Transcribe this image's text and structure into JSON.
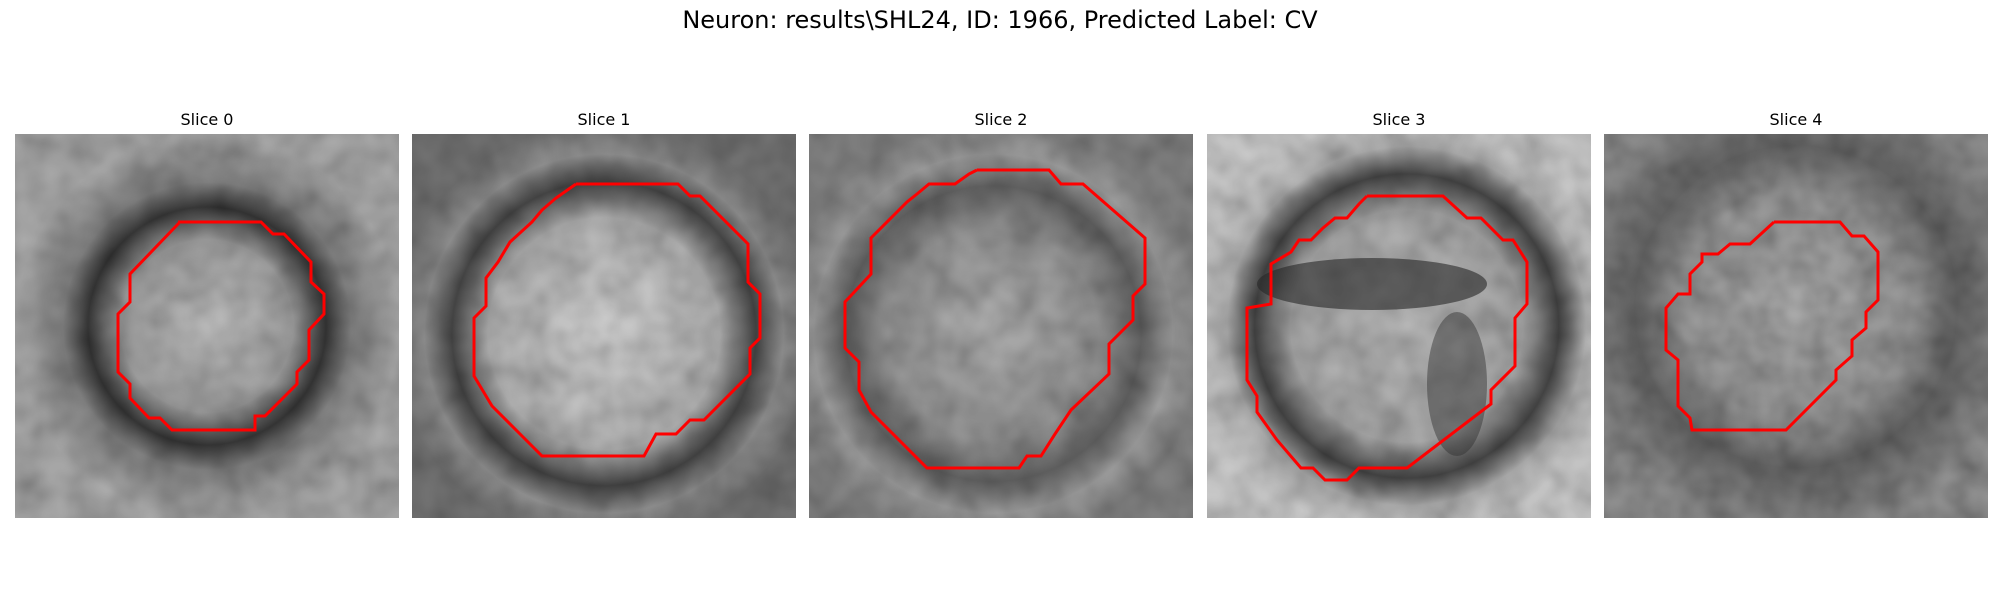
{
  "figure": {
    "title": "Neuron: results\\SHL24, ID: 1966, Predicted Label: CV"
  },
  "panels": [
    {
      "title": "Slice 0"
    },
    {
      "title": "Slice 1"
    },
    {
      "title": "Slice 2"
    },
    {
      "title": "Slice 3"
    },
    {
      "title": "Slice 4"
    }
  ],
  "colors": {
    "contour": "#ff0000",
    "image_cmap": "gray"
  }
}
